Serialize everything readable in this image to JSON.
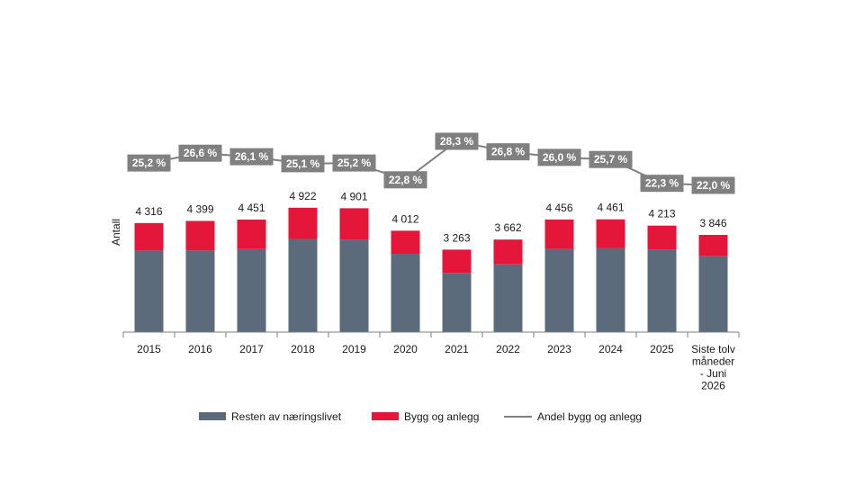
{
  "chart_data": {
    "type": "bar",
    "stacked": true,
    "categories": [
      "2015",
      "2016",
      "2017",
      "2018",
      "2019",
      "2020",
      "2021",
      "2022",
      "2023",
      "2024",
      "2025",
      "Siste tolv måneder - Juni 2026"
    ],
    "category_lines": [
      [
        "2015"
      ],
      [
        "2016"
      ],
      [
        "2017"
      ],
      [
        "2018"
      ],
      [
        "2019"
      ],
      [
        "2020"
      ],
      [
        "2021"
      ],
      [
        "2022"
      ],
      [
        "2023"
      ],
      [
        "2024"
      ],
      [
        "2025"
      ],
      [
        "Siste tolv",
        "måneder",
        "- Juni",
        "2026"
      ]
    ],
    "series": [
      {
        "name": "Resten av næringslivet",
        "color": "#5b6b7c",
        "values": [
          3226,
          3229,
          3289,
          3687,
          3666,
          3097,
          2340,
          2681,
          3297,
          3315,
          3274,
          3000
        ]
      },
      {
        "name": "Bygg og anlegg",
        "color": "#e4163a",
        "values": [
          1090,
          1170,
          1162,
          1235,
          1235,
          915,
          923,
          981,
          1159,
          1146,
          939,
          846
        ]
      }
    ],
    "totals": [
      4316,
      4399,
      4451,
      4922,
      4901,
      4012,
      3263,
      3662,
      4456,
      4461,
      4213,
      3846
    ],
    "total_labels": [
      "4 316",
      "4 399",
      "4 451",
      "4 922",
      "4 901",
      "4 012",
      "3 263",
      "3 662",
      "4 456",
      "4 461",
      "4 213",
      "3 846"
    ],
    "line_series": {
      "name": "Andel bygg og anlegg",
      "color": "#808080",
      "values": [
        25.2,
        26.6,
        26.1,
        25.1,
        25.2,
        22.8,
        28.3,
        26.8,
        26.0,
        25.7,
        22.3,
        22.0
      ],
      "labels": [
        "25,2 %",
        "26,6 %",
        "26,1 %",
        "25,1 %",
        "25,2 %",
        "22,8 %",
        "28,3 %",
        "26,8 %",
        "26,0 %",
        "25,7 %",
        "22,3 %",
        "22,0 %"
      ]
    },
    "ylabel": "Antall",
    "ylim": [
      0,
      5000
    ],
    "pct_range": [
      18,
      30
    ],
    "grid": false,
    "legend_position": "bottom"
  }
}
